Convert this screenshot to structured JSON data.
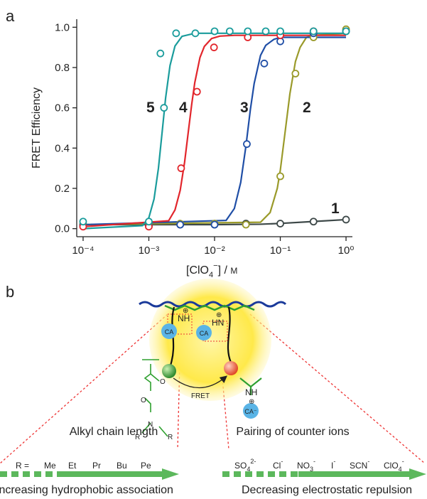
{
  "chart_data": {
    "type": "scatter-fit",
    "panel_label": "a",
    "y_label": "FRET Efficiency",
    "x_label": [
      "[ClO",
      "4",
      "−",
      "] / ",
      "M"
    ],
    "log_x": true,
    "xlim": [
      8e-05,
      1.25
    ],
    "xticks": [
      {
        "value": 0.0001,
        "label": "10⁻⁴"
      },
      {
        "value": 0.001,
        "label": "10⁻³"
      },
      {
        "value": 0.01,
        "label": "10⁻²"
      },
      {
        "value": 0.1,
        "label": "10⁻¹"
      },
      {
        "value": 1,
        "label": "10⁰"
      }
    ],
    "ylim": [
      -0.04,
      1.04
    ],
    "yticks": [
      {
        "value": 0,
        "label": "0.0"
      },
      0.2,
      0.4,
      0.6,
      0.8,
      {
        "value": 1,
        "label": "1.0"
      }
    ],
    "series": [
      {
        "name": "1",
        "color": "#3d4848",
        "x": [
          0.0001,
          0.001,
          0.003,
          0.01,
          0.03,
          0.1,
          0.32,
          1
        ],
        "values": [
          0.02,
          0.02,
          0.02,
          0.02,
          0.025,
          0.025,
          0.035,
          0.045
        ],
        "fit_x": [
          0.0001,
          0.01,
          0.05,
          0.1,
          0.3,
          1
        ],
        "fit_values": [
          0.02,
          0.02,
          0.022,
          0.026,
          0.035,
          0.045
        ]
      },
      {
        "name": "2",
        "color": "#9a9a2a",
        "x": [
          0.0001,
          0.001,
          0.003,
          0.01,
          0.03,
          0.1,
          0.17,
          0.32,
          1
        ],
        "values": [
          0.02,
          0.02,
          0.025,
          0.025,
          0.02,
          0.26,
          0.77,
          0.95,
          0.99
        ],
        "fit_x": [
          0.0001,
          0.05,
          0.07,
          0.09,
          0.1,
          0.12,
          0.14,
          0.17,
          0.2,
          0.25,
          0.32,
          1
        ],
        "fit_values": [
          0.02,
          0.032,
          0.08,
          0.2,
          0.29,
          0.495,
          0.67,
          0.83,
          0.9,
          0.95,
          0.96,
          0.97
        ]
      },
      {
        "name": "3",
        "color": "#1f4ea6",
        "x": [
          0.0001,
          0.001,
          0.003,
          0.01,
          0.031,
          0.057,
          0.1,
          0.32,
          1
        ],
        "values": [
          0.015,
          0.015,
          0.02,
          0.02,
          0.42,
          0.82,
          0.93,
          0.97,
          0.98
        ],
        "fit_x": [
          0.0001,
          0.015,
          0.02,
          0.025,
          0.03,
          0.035,
          0.04,
          0.05,
          0.06,
          0.08,
          0.1,
          1
        ],
        "fit_values": [
          0.02,
          0.041,
          0.1,
          0.23,
          0.41,
          0.59,
          0.72,
          0.86,
          0.91,
          0.94,
          0.95,
          0.95
        ]
      },
      {
        "name": "4",
        "color": "#e2262c",
        "x": [
          0.0001,
          0.001,
          0.0031,
          0.0054,
          0.0098,
          0.032,
          0.1,
          0.32
        ],
        "values": [
          0.01,
          0.01,
          0.3,
          0.68,
          0.9,
          0.95,
          0.96,
          0.98
        ],
        "fit_x": [
          0.0001,
          0.002,
          0.0025,
          0.003,
          0.0035,
          0.004,
          0.0045,
          0.005,
          0.006,
          0.007,
          0.009,
          0.012,
          0.02,
          1
        ],
        "fit_values": [
          0.01,
          0.039,
          0.093,
          0.19,
          0.33,
          0.485,
          0.62,
          0.725,
          0.85,
          0.905,
          0.944,
          0.956,
          0.96,
          0.96
        ]
      },
      {
        "name": "5",
        "color": "#1a9c9c",
        "x": [
          0.0001,
          0.001,
          0.0015,
          0.0017,
          0.0026,
          0.0051,
          0.01,
          0.017,
          0.032,
          0.06,
          0.1,
          0.32,
          1
        ],
        "values": [
          0.035,
          0.035,
          0.87,
          0.6,
          0.97,
          0.97,
          0.98,
          0.98,
          0.98,
          0.98,
          0.98,
          0.98,
          0.98
        ],
        "fit_x": [
          0.0001,
          0.0008,
          0.001,
          0.0012,
          0.0014,
          0.0016,
          0.0018,
          0.0021,
          0.0025,
          0.0032,
          0.005,
          1
        ],
        "fit_values": [
          0,
          0.015,
          0.054,
          0.147,
          0.3,
          0.485,
          0.649,
          0.81,
          0.907,
          0.955,
          0.97,
          0.97
        ]
      }
    ]
  },
  "diagram": {
    "panel_label": "b",
    "amine_left": "NH",
    "amine_right": "HN",
    "charge": "⊕",
    "counter_ion": "CA",
    "free_counter_ion": "CA⁻",
    "fret": "FRET",
    "structure_atoms": [
      "O",
      "O",
      "N",
      "R",
      "R"
    ],
    "left_title": "Alkyl chain length",
    "right_title": "Pairing of counter ions",
    "r_prefix": "R =",
    "alkyl_groups": [
      "Me",
      "Et",
      "Pr",
      "Bu",
      "Pe"
    ],
    "ions": [
      {
        "base": "SO",
        "sub": "4",
        "sup": "2-"
      },
      {
        "base": "Cl",
        "sup": "-"
      },
      {
        "base": "NO",
        "sub": "3",
        "sup": "-"
      },
      {
        "base": "I",
        "sup": "-"
      },
      {
        "base": "SCN",
        "sup": "-"
      },
      {
        "base": "ClO",
        "sub": "4",
        "sup": "-"
      }
    ],
    "left_caption": "Increasing hydrophobic association",
    "right_caption": "Decreasing electrostatic repulsion"
  }
}
